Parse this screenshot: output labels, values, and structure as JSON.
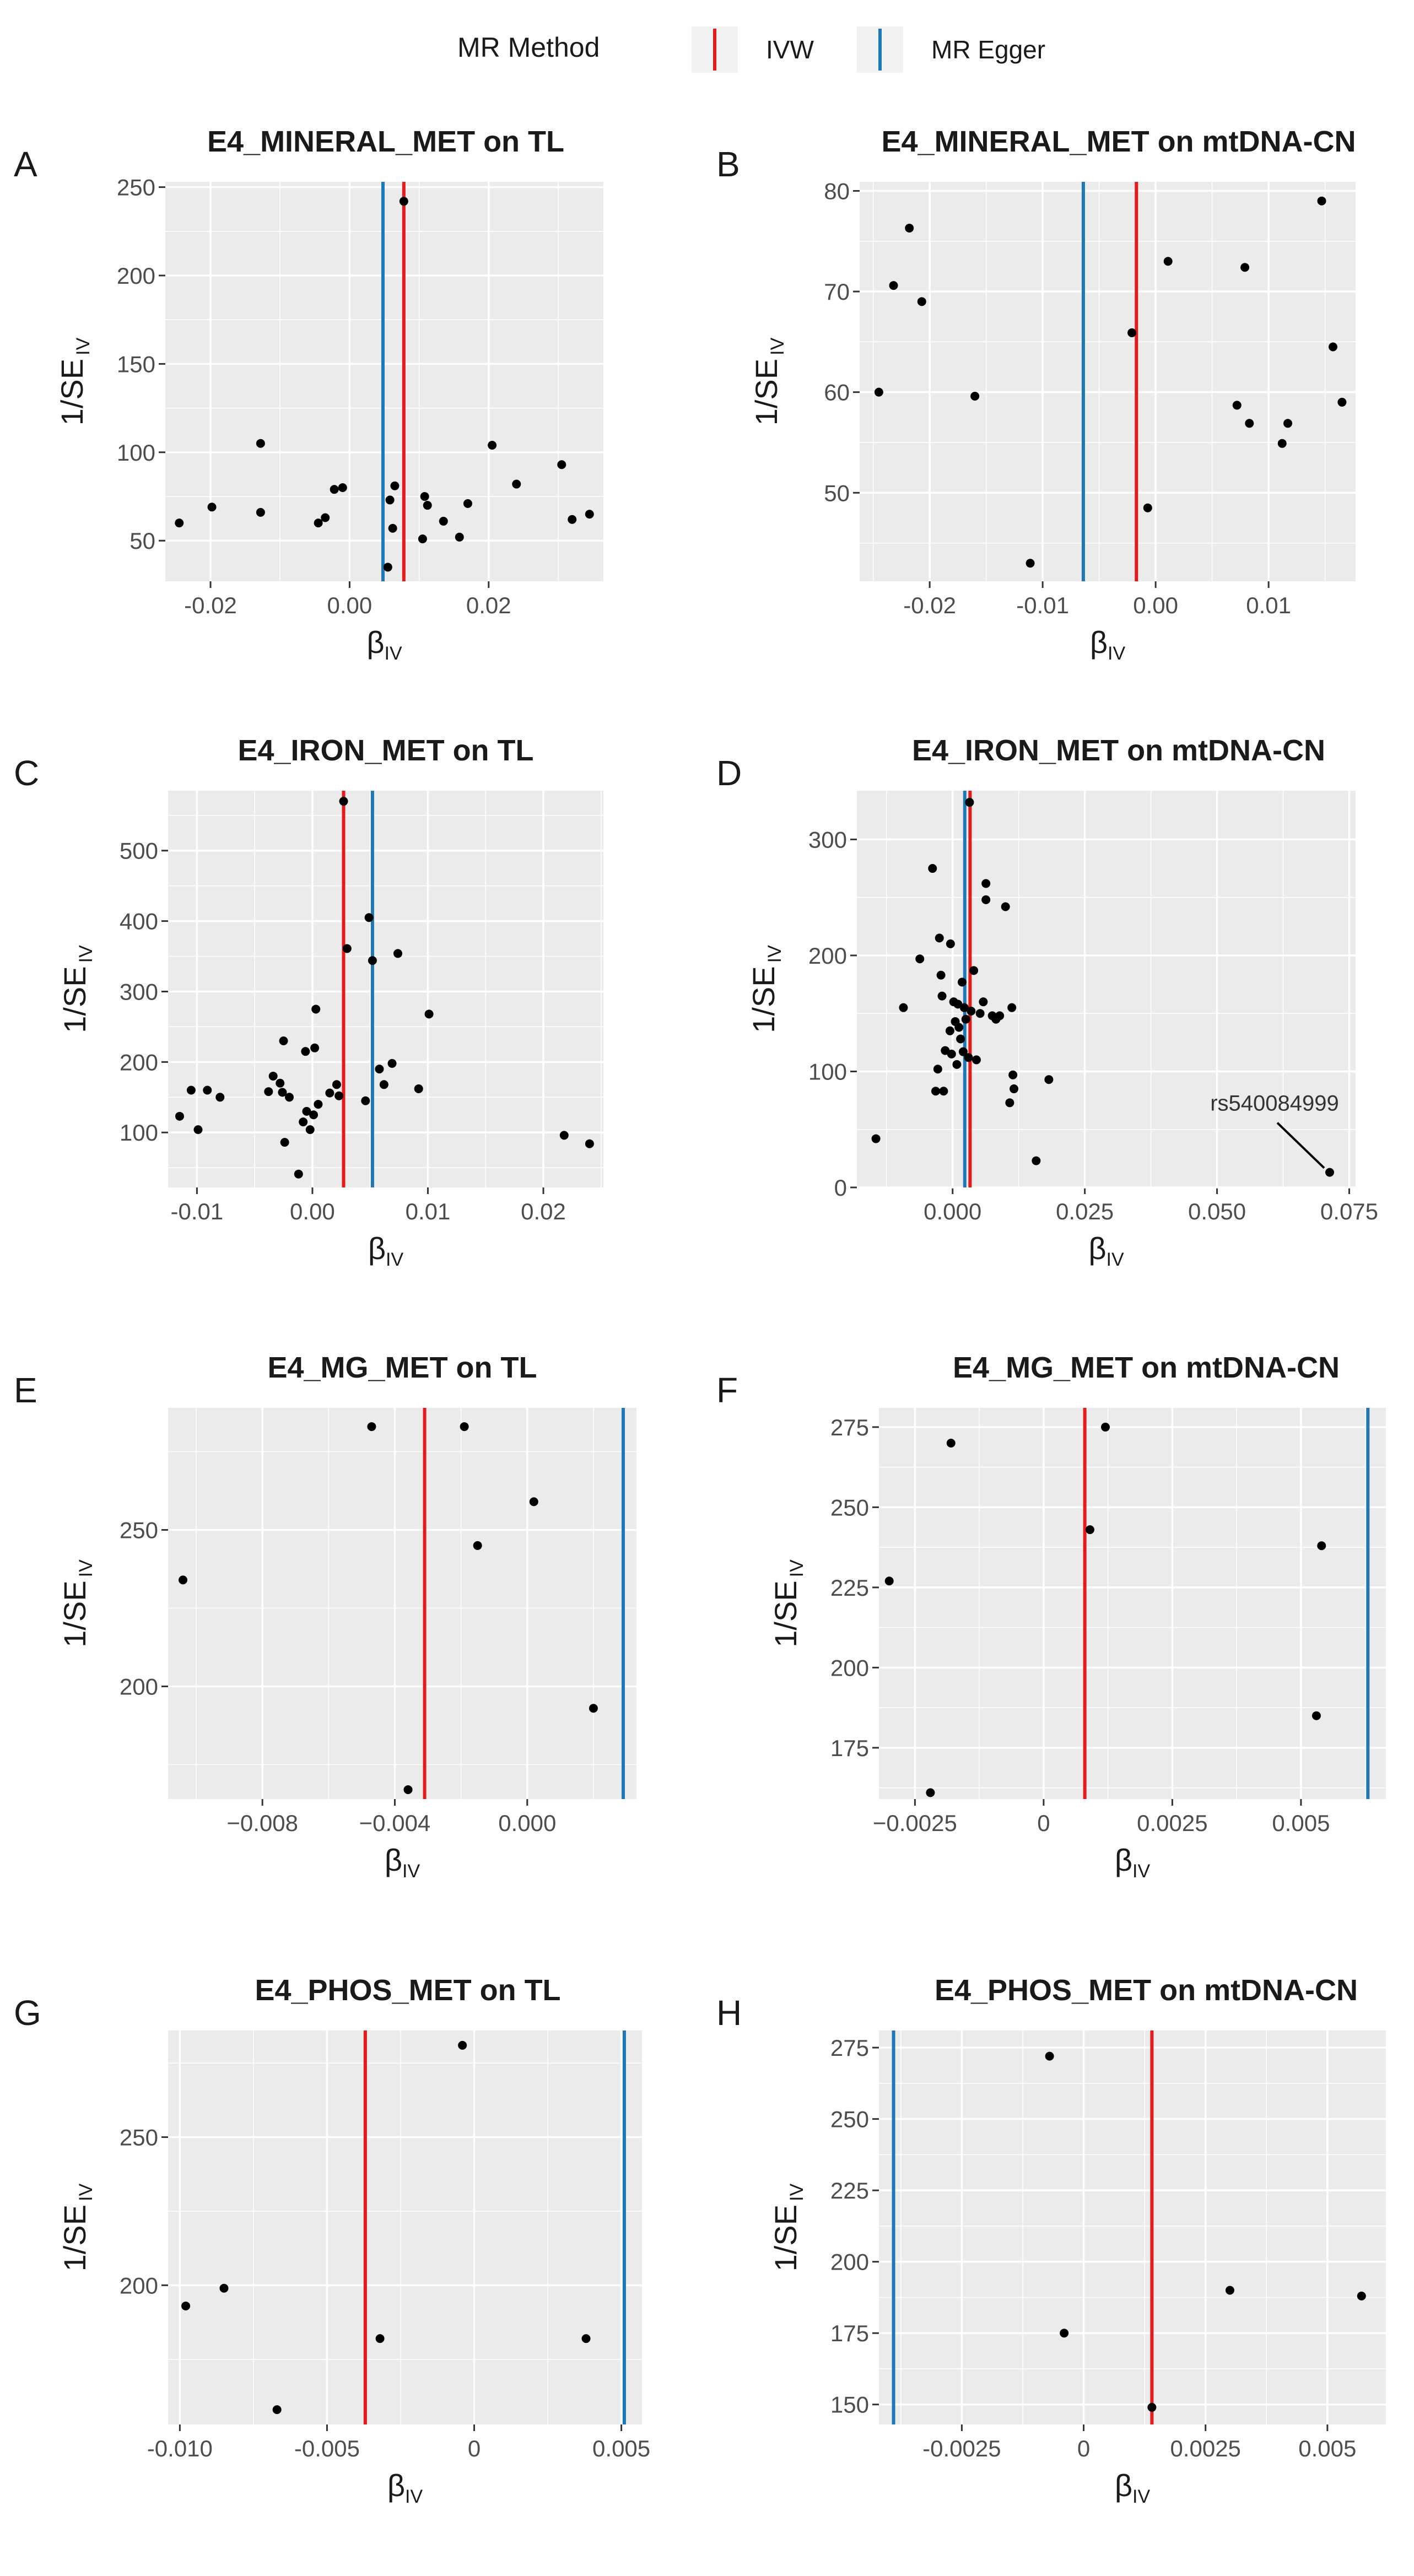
{
  "legend": {
    "title": "MR Method",
    "items": [
      {
        "label": "IVW",
        "color": "#e41a1c"
      },
      {
        "label": "MR Egger",
        "color": "#1f78b4"
      }
    ]
  },
  "colors": {
    "panel_bg": "#ebebeb",
    "grid": "#ffffff",
    "point": "#000000",
    "ivw": "#e41a1c",
    "egger": "#1f78b4"
  },
  "chart_data": [
    {
      "type": "scatter",
      "panel_letter": "A",
      "title": "E4_MINERAL_MET on TL",
      "xlabel_main": "β",
      "xlabel_sub": "IV",
      "ylabel_main": "1/SE",
      "ylabel_sub": "IV",
      "xlim": [
        -0.0265,
        0.0365
      ],
      "ylim": [
        27,
        253
      ],
      "xticks": [
        -0.02,
        0.0,
        0.02
      ],
      "xtick_labels": [
        "-0.02",
        "0.00",
        "0.02"
      ],
      "yticks": [
        50,
        100,
        150,
        200,
        250
      ],
      "ytick_labels": [
        "50",
        "100",
        "150",
        "200",
        "250"
      ],
      "ivw_x": 0.0078,
      "egger_x": 0.0048,
      "annotation": null,
      "points": [
        [
          -0.0245,
          60
        ],
        [
          -0.0198,
          69
        ],
        [
          -0.0128,
          105
        ],
        [
          -0.0128,
          66
        ],
        [
          -0.0045,
          60
        ],
        [
          -0.0035,
          63
        ],
        [
          -0.0022,
          79
        ],
        [
          -0.001,
          80
        ],
        [
          0.0055,
          35
        ],
        [
          0.0058,
          73
        ],
        [
          0.0062,
          57
        ],
        [
          0.0065,
          81
        ],
        [
          0.0078,
          242
        ],
        [
          0.0105,
          51
        ],
        [
          0.0108,
          75
        ],
        [
          0.0112,
          70
        ],
        [
          0.0135,
          61
        ],
        [
          0.0158,
          52
        ],
        [
          0.017,
          71
        ],
        [
          0.0205,
          104
        ],
        [
          0.024,
          82
        ],
        [
          0.0305,
          93
        ],
        [
          0.032,
          62
        ],
        [
          0.0345,
          65
        ]
      ]
    },
    {
      "type": "scatter",
      "panel_letter": "B",
      "title": "E4_MINERAL_MET on mtDNA-CN",
      "xlabel_main": "β",
      "xlabel_sub": "IV",
      "ylabel_main": "1/SE",
      "ylabel_sub": "IV",
      "xlim": [
        -0.0262,
        0.0177
      ],
      "ylim": [
        41.2,
        80.9
      ],
      "xticks": [
        -0.02,
        -0.01,
        0.0,
        0.01
      ],
      "xtick_labels": [
        "-0.02",
        "-0.01",
        "0.00",
        "0.01"
      ],
      "yticks": [
        50,
        60,
        70,
        80
      ],
      "ytick_labels": [
        "50",
        "60",
        "70",
        "80"
      ],
      "ivw_x": -0.0017,
      "egger_x": -0.0064,
      "annotation": null,
      "points": [
        [
          -0.0245,
          60
        ],
        [
          -0.0232,
          70.6
        ],
        [
          -0.0218,
          76.3
        ],
        [
          -0.0207,
          69
        ],
        [
          -0.016,
          59.6
        ],
        [
          -0.0111,
          43
        ],
        [
          -0.0021,
          65.9
        ],
        [
          -0.0007,
          48.5
        ],
        [
          0.0011,
          73
        ],
        [
          0.0072,
          58.7
        ],
        [
          0.0079,
          72.4
        ],
        [
          0.0083,
          56.9
        ],
        [
          0.0112,
          54.9
        ],
        [
          0.0117,
          56.9
        ],
        [
          0.0147,
          79
        ],
        [
          0.0157,
          64.5
        ],
        [
          0.0165,
          59
        ]
      ]
    },
    {
      "type": "scatter",
      "panel_letter": "C",
      "title": "E4_IRON_MET on TL",
      "xlabel_main": "β",
      "xlabel_sub": "IV",
      "ylabel_main": "1/SE",
      "ylabel_sub": "IV",
      "xlim": [
        -0.0125,
        0.0252
      ],
      "ylim": [
        22,
        585
      ],
      "xticks": [
        -0.01,
        0.0,
        0.01,
        0.02
      ],
      "xtick_labels": [
        "-0.01",
        "0.00",
        "0.01",
        "0.02"
      ],
      "yticks": [
        100,
        200,
        300,
        400,
        500
      ],
      "ytick_labels": [
        "100",
        "200",
        "300",
        "400",
        "500"
      ],
      "ivw_x": 0.0027,
      "egger_x": 0.0052,
      "annotation": null,
      "points": [
        [
          -0.0115,
          123
        ],
        [
          -0.0105,
          160
        ],
        [
          -0.0099,
          104
        ],
        [
          -0.0091,
          160
        ],
        [
          -0.008,
          150
        ],
        [
          -0.0038,
          158
        ],
        [
          -0.0034,
          180
        ],
        [
          -0.0028,
          170
        ],
        [
          -0.0026,
          157
        ],
        [
          -0.0025,
          230
        ],
        [
          -0.0024,
          86
        ],
        [
          -0.002,
          150
        ],
        [
          -0.0012,
          41
        ],
        [
          -0.0008,
          115
        ],
        [
          -0.0006,
          215
        ],
        [
          -0.0005,
          130
        ],
        [
          -0.0002,
          104
        ],
        [
          0.0001,
          125
        ],
        [
          0.0002,
          220
        ],
        [
          0.0003,
          275
        ],
        [
          0.0005,
          140
        ],
        [
          0.0015,
          156
        ],
        [
          0.0021,
          168
        ],
        [
          0.0023,
          152
        ],
        [
          0.0027,
          570
        ],
        [
          0.003,
          361
        ],
        [
          0.0046,
          145
        ],
        [
          0.0049,
          405
        ],
        [
          0.0052,
          344
        ],
        [
          0.0058,
          190
        ],
        [
          0.0062,
          168
        ],
        [
          0.0069,
          198
        ],
        [
          0.0074,
          354
        ],
        [
          0.0092,
          162
        ],
        [
          0.0101,
          268
        ],
        [
          0.0218,
          96
        ],
        [
          0.024,
          84
        ]
      ]
    },
    {
      "type": "scatter",
      "panel_letter": "D",
      "title": "E4_IRON_MET on mtDNA-CN",
      "xlabel_main": "β",
      "xlabel_sub": "IV",
      "ylabel_main": "1/SE",
      "ylabel_sub": "IV",
      "xlim": [
        -0.0181,
        0.0762
      ],
      "ylim": [
        0,
        342
      ],
      "xticks": [
        0.0,
        0.025,
        0.05,
        0.075
      ],
      "xtick_labels": [
        "0.000",
        "0.025",
        "0.050",
        "0.075"
      ],
      "yticks": [
        0,
        100,
        200,
        300
      ],
      "ytick_labels": [
        "0",
        "100",
        "200",
        "300"
      ],
      "ivw_x": 0.0033,
      "egger_x": 0.0023,
      "annotation": {
        "text": "rs540084999",
        "x": 0.0713,
        "y": 13
      },
      "points": [
        [
          -0.0145,
          42
        ],
        [
          -0.0093,
          155
        ],
        [
          -0.0062,
          197
        ],
        [
          -0.0038,
          275
        ],
        [
          -0.0032,
          83
        ],
        [
          -0.0028,
          102
        ],
        [
          -0.0025,
          215
        ],
        [
          -0.0022,
          183
        ],
        [
          -0.002,
          165
        ],
        [
          -0.0017,
          83
        ],
        [
          -0.0014,
          118
        ],
        [
          -0.0005,
          135
        ],
        [
          -0.0004,
          210
        ],
        [
          -0.0002,
          115
        ],
        [
          0.0002,
          160
        ],
        [
          0.0005,
          143
        ],
        [
          0.0008,
          106
        ],
        [
          0.001,
          158
        ],
        [
          0.0012,
          138
        ],
        [
          0.0015,
          128
        ],
        [
          0.0018,
          177
        ],
        [
          0.002,
          117
        ],
        [
          0.0022,
          155
        ],
        [
          0.0025,
          145
        ],
        [
          0.003,
          112
        ],
        [
          0.0032,
          332
        ],
        [
          0.0035,
          152
        ],
        [
          0.004,
          187
        ],
        [
          0.0045,
          110
        ],
        [
          0.0052,
          150
        ],
        [
          0.0063,
          262
        ],
        [
          0.0058,
          160
        ],
        [
          0.0063,
          248
        ],
        [
          0.0075,
          148
        ],
        [
          0.0082,
          145
        ],
        [
          0.0089,
          148
        ],
        [
          0.01,
          242
        ],
        [
          0.0108,
          73
        ],
        [
          0.0112,
          155
        ],
        [
          0.0114,
          97
        ],
        [
          0.0116,
          85
        ],
        [
          0.0158,
          23
        ],
        [
          0.0182,
          93
        ],
        [
          0.0713,
          13
        ]
      ]
    },
    {
      "type": "scatter",
      "panel_letter": "E",
      "title": "E4_MG_MET on TL",
      "xlabel_main": "β",
      "xlabel_sub": "IV",
      "ylabel_main": "1/SE",
      "ylabel_sub": "IV",
      "xlim": [
        -0.01085,
        0.0033
      ],
      "ylim": [
        164,
        289
      ],
      "xticks": [
        -0.008,
        -0.004,
        0.0
      ],
      "xtick_labels": [
        "−0.008",
        "−0.004",
        "0.000"
      ],
      "yticks": [
        200,
        250
      ],
      "ytick_labels": [
        "200",
        "250"
      ],
      "ivw_x": -0.0031,
      "egger_x": 0.0029,
      "annotation": null,
      "points": [
        [
          -0.0104,
          234
        ],
        [
          -0.0047,
          283
        ],
        [
          -0.0036,
          167
        ],
        [
          -0.0019,
          283
        ],
        [
          -0.0015,
          245
        ],
        [
          0.0002,
          259
        ],
        [
          0.002,
          193
        ]
      ]
    },
    {
      "type": "scatter",
      "panel_letter": "F",
      "title": "E4_MG_MET on mtDNA-CN",
      "xlabel_main": "β",
      "xlabel_sub": "IV",
      "ylabel_main": "1/SE",
      "ylabel_sub": "IV",
      "xlim": [
        -0.0032,
        0.00665
      ],
      "ylim": [
        159,
        281
      ],
      "xticks": [
        -0.0025,
        0.0,
        0.0025,
        0.005
      ],
      "xtick_labels": [
        "−0.0025",
        "0",
        "0.0025",
        "0.005"
      ],
      "yticks": [
        175,
        200,
        225,
        250,
        275
      ],
      "ytick_labels": [
        "175",
        "200",
        "225",
        "250",
        "275"
      ],
      "ivw_x": 0.0008,
      "egger_x": 0.0063,
      "annotation": null,
      "points": [
        [
          -0.003,
          227
        ],
        [
          -0.0022,
          161
        ],
        [
          -0.0018,
          270
        ],
        [
          0.0009,
          243
        ],
        [
          0.0012,
          275
        ],
        [
          0.0053,
          185
        ],
        [
          0.0054,
          238
        ]
      ]
    },
    {
      "type": "scatter",
      "panel_letter": "G",
      "title": "E4_PHOS_MET on TL",
      "xlabel_main": "β",
      "xlabel_sub": "IV",
      "ylabel_main": "1/SE",
      "ylabel_sub": "IV",
      "xlim": [
        -0.0104,
        0.0057
      ],
      "ylim": [
        153,
        286
      ],
      "xticks": [
        -0.01,
        -0.005,
        0.0,
        0.005
      ],
      "xtick_labels": [
        "-0.010",
        "-0.005",
        "0",
        "0.005"
      ],
      "yticks": [
        200,
        250
      ],
      "ytick_labels": [
        "200",
        "250"
      ],
      "ivw_x": -0.0037,
      "egger_x": 0.0051,
      "annotation": null,
      "points": [
        [
          -0.0098,
          193
        ],
        [
          -0.0085,
          199
        ],
        [
          -0.0067,
          158
        ],
        [
          -0.0032,
          182
        ],
        [
          -0.0004,
          281
        ],
        [
          0.0038,
          182
        ]
      ]
    },
    {
      "type": "scatter",
      "panel_letter": "H",
      "title": "E4_PHOS_MET on mtDNA-CN",
      "xlabel_main": "β",
      "xlabel_sub": "IV",
      "ylabel_main": "1/SE",
      "ylabel_sub": "IV",
      "xlim": [
        -0.0042,
        0.0062
      ],
      "ylim": [
        143,
        281
      ],
      "xticks": [
        -0.0025,
        0.0,
        0.0025,
        0.005
      ],
      "xtick_labels": [
        "-0.0025",
        "0",
        "0.0025",
        "0.005"
      ],
      "yticks": [
        150,
        175,
        200,
        225,
        250,
        275
      ],
      "ytick_labels": [
        "150",
        "175",
        "200",
        "225",
        "250",
        "275"
      ],
      "ivw_x": 0.0014,
      "egger_x": -0.0039,
      "annotation": null,
      "points": [
        [
          -0.0007,
          272
        ],
        [
          -0.0004,
          175
        ],
        [
          0.0014,
          149
        ],
        [
          0.003,
          190
        ],
        [
          0.0057,
          188
        ]
      ]
    }
  ]
}
